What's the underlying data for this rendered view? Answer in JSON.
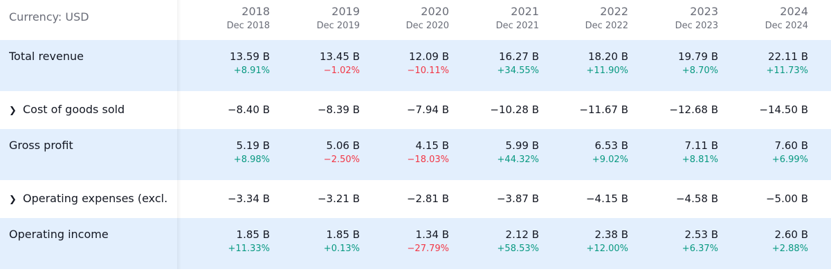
{
  "header": {
    "currency_label": "Currency: USD",
    "columns": [
      {
        "year": "2018",
        "period": "Dec 2018"
      },
      {
        "year": "2019",
        "period": "Dec 2019"
      },
      {
        "year": "2020",
        "period": "Dec 2020"
      },
      {
        "year": "2021",
        "period": "Dec 2021"
      },
      {
        "year": "2022",
        "period": "Dec 2022"
      },
      {
        "year": "2023",
        "period": "Dec 2023"
      },
      {
        "year": "2024",
        "period": "Dec 2024"
      }
    ]
  },
  "rows": [
    {
      "label": "Total revenue",
      "expandable": false,
      "highlight": true,
      "values": [
        "13.59 B",
        "13.45 B",
        "12.09 B",
        "16.27 B",
        "18.20 B",
        "19.79 B",
        "22.11 B"
      ],
      "changes": [
        "+8.91%",
        "−1.02%",
        "−10.11%",
        "+34.55%",
        "+11.90%",
        "+8.70%",
        "+11.73%"
      ]
    },
    {
      "label": "Cost of goods sold",
      "expandable": true,
      "highlight": false,
      "values": [
        "−8.40 B",
        "−8.39 B",
        "−7.94 B",
        "−10.28 B",
        "−11.67 B",
        "−12.68 B",
        "−14.50 B"
      ],
      "changes": []
    },
    {
      "label": "Gross profit",
      "expandable": false,
      "highlight": true,
      "values": [
        "5.19 B",
        "5.06 B",
        "4.15 B",
        "5.99 B",
        "6.53 B",
        "7.11 B",
        "7.60 B"
      ],
      "changes": [
        "+8.98%",
        "−2.50%",
        "−18.03%",
        "+44.32%",
        "+9.02%",
        "+8.81%",
        "+6.99%"
      ]
    },
    {
      "label": "Operating expenses (excl.",
      "expandable": true,
      "highlight": false,
      "values": [
        "−3.34 B",
        "−3.21 B",
        "−2.81 B",
        "−3.87 B",
        "−4.15 B",
        "−4.58 B",
        "−5.00 B"
      ],
      "changes": []
    },
    {
      "label": "Operating income",
      "expandable": false,
      "highlight": true,
      "values": [
        "1.85 B",
        "1.85 B",
        "1.34 B",
        "2.12 B",
        "2.38 B",
        "2.53 B",
        "2.60 B"
      ],
      "changes": [
        "+11.33%",
        "+0.13%",
        "−27.79%",
        "+58.53%",
        "+12.00%",
        "+6.37%",
        "+2.88%"
      ]
    }
  ],
  "icons": {
    "expand": "chevron-right-icon"
  },
  "colors": {
    "positive": "#089981",
    "negative": "#f23645",
    "highlight_row": "#e3effd"
  }
}
